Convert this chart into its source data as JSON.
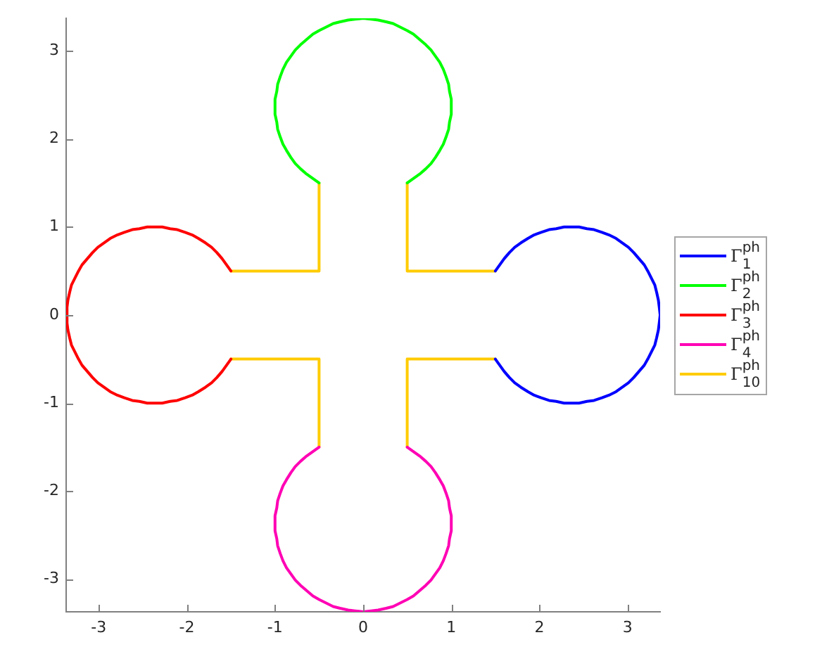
{
  "chart_data": {
    "type": "line",
    "xlim": [
      -3.37,
      3.37
    ],
    "ylim": [
      -3.37,
      3.37
    ],
    "xticks": [
      -3,
      -2,
      -1,
      0,
      1,
      2,
      3
    ],
    "yticks": [
      -3,
      -2,
      -1,
      0,
      1,
      2,
      3
    ],
    "grid": false,
    "legend": "right",
    "series": [
      {
        "name": "Γ$_{1}$$^{ph}$",
        "color": "#0000ff",
        "x": [
          1.5,
          1.55,
          1.6,
          1.66,
          1.72,
          1.79,
          1.87,
          1.94,
          2.02,
          2.11,
          2.19,
          2.28,
          2.37,
          2.45,
          2.54,
          2.62,
          2.71,
          2.79,
          2.87,
          2.94,
          3.01,
          3.07,
          3.13,
          3.19,
          3.23,
          3.27,
          3.31,
          3.33,
          3.35,
          3.36,
          3.37,
          3.36,
          3.35,
          3.33,
          3.31,
          3.27,
          3.23,
          3.19,
          3.13,
          3.07,
          3.01,
          2.94,
          2.87,
          2.79,
          2.71,
          2.62,
          2.54,
          2.45,
          2.37,
          2.28,
          2.19,
          2.11,
          2.02,
          1.94,
          1.87,
          1.79,
          1.72,
          1.66,
          1.6,
          1.55,
          1.5
        ],
        "values": [
          0.5,
          0.57,
          0.64,
          0.71,
          0.77,
          0.82,
          0.87,
          0.91,
          0.94,
          0.97,
          0.98,
          1,
          1,
          1,
          0.98,
          0.97,
          0.94,
          0.91,
          0.87,
          0.82,
          0.77,
          0.71,
          0.64,
          0.57,
          0.5,
          0.42,
          0.34,
          0.26,
          0.17,
          0.09,
          0,
          -0.09,
          -0.17,
          -0.26,
          -0.34,
          -0.42,
          -0.5,
          -0.57,
          -0.64,
          -0.71,
          -0.77,
          -0.82,
          -0.87,
          -0.91,
          -0.94,
          -0.97,
          -0.98,
          -1,
          -1,
          -1,
          -0.98,
          -0.97,
          -0.94,
          -0.91,
          -0.87,
          -0.82,
          -0.77,
          -0.71,
          -0.64,
          -0.57,
          -0.5
        ]
      },
      {
        "name": "Γ$_{2}$$^{ph}$",
        "color": "#00ff00",
        "x": [
          -0.5,
          -0.57,
          -0.64,
          -0.71,
          -0.77,
          -0.82,
          -0.87,
          -0.91,
          -0.94,
          -0.97,
          -0.98,
          -1,
          -1,
          -0.98,
          -0.97,
          -0.94,
          -0.91,
          -0.87,
          -0.82,
          -0.77,
          -0.71,
          -0.64,
          -0.57,
          -0.5,
          -0.42,
          -0.34,
          -0.26,
          -0.17,
          -0.09,
          0,
          0.09,
          0.17,
          0.26,
          0.34,
          0.42,
          0.5,
          0.57,
          0.64,
          0.71,
          0.77,
          0.82,
          0.87,
          0.91,
          0.94,
          0.97,
          0.98,
          1,
          1,
          0.98,
          0.97,
          0.94,
          0.91,
          0.87,
          0.82,
          0.77,
          0.71,
          0.64,
          0.57,
          0.5
        ],
        "values": [
          1.5,
          1.55,
          1.6,
          1.66,
          1.72,
          1.79,
          1.87,
          1.94,
          2.02,
          2.11,
          2.19,
          2.28,
          2.45,
          2.54,
          2.62,
          2.71,
          2.79,
          2.87,
          2.94,
          3.01,
          3.07,
          3.13,
          3.19,
          3.23,
          3.27,
          3.31,
          3.33,
          3.35,
          3.36,
          3.37,
          3.36,
          3.35,
          3.33,
          3.31,
          3.27,
          3.23,
          3.19,
          3.13,
          3.07,
          3.01,
          2.94,
          2.87,
          2.79,
          2.71,
          2.62,
          2.54,
          2.45,
          2.28,
          2.19,
          2.11,
          2.02,
          1.94,
          1.87,
          1.79,
          1.72,
          1.66,
          1.6,
          1.55,
          1.5
        ]
      },
      {
        "name": "Γ$_{3}$$^{ph}$",
        "color": "#ff0000",
        "x": [
          -1.5,
          -1.55,
          -1.6,
          -1.66,
          -1.72,
          -1.79,
          -1.87,
          -1.94,
          -2.02,
          -2.11,
          -2.19,
          -2.28,
          -2.37,
          -2.45,
          -2.54,
          -2.62,
          -2.71,
          -2.79,
          -2.87,
          -2.94,
          -3.01,
          -3.07,
          -3.13,
          -3.19,
          -3.23,
          -3.27,
          -3.31,
          -3.33,
          -3.35,
          -3.36,
          -3.36,
          -3.35,
          -3.33,
          -3.31,
          -3.27,
          -3.23,
          -3.19,
          -3.13,
          -3.07,
          -3.01,
          -2.94,
          -2.87,
          -2.79,
          -2.71,
          -2.62,
          -2.54,
          -2.45,
          -2.37,
          -2.28,
          -2.19,
          -2.11,
          -2.02,
          -1.94,
          -1.87,
          -1.79,
          -1.72,
          -1.66,
          -1.6,
          -1.55,
          -1.5
        ],
        "values": [
          -0.5,
          -0.57,
          -0.64,
          -0.71,
          -0.77,
          -0.82,
          -0.87,
          -0.91,
          -0.94,
          -0.97,
          -0.98,
          -1,
          -1,
          -1,
          -0.98,
          -0.97,
          -0.94,
          -0.91,
          -0.87,
          -0.82,
          -0.77,
          -0.71,
          -0.64,
          -0.57,
          -0.5,
          -0.42,
          -0.34,
          -0.26,
          -0.17,
          -0.09,
          0.09,
          0.17,
          0.26,
          0.34,
          0.42,
          0.5,
          0.57,
          0.64,
          0.71,
          0.77,
          0.82,
          0.87,
          0.91,
          0.94,
          0.97,
          0.98,
          1,
          1,
          1,
          0.98,
          0.97,
          0.94,
          0.91,
          0.87,
          0.82,
          0.77,
          0.71,
          0.64,
          0.57,
          0.5
        ]
      },
      {
        "name": "Γ$_{4}$$^{ph}$",
        "color": "#ff00b4",
        "x": [
          0.5,
          0.57,
          0.64,
          0.71,
          0.77,
          0.82,
          0.87,
          0.91,
          0.94,
          0.97,
          0.98,
          1,
          1,
          0.98,
          0.97,
          0.94,
          0.91,
          0.87,
          0.82,
          0.77,
          0.71,
          0.64,
          0.57,
          0.5,
          0.42,
          0.34,
          0.26,
          0.17,
          0.09,
          0,
          -0.09,
          -0.17,
          -0.26,
          -0.34,
          -0.42,
          -0.5,
          -0.57,
          -0.64,
          -0.71,
          -0.77,
          -0.82,
          -0.87,
          -0.91,
          -0.94,
          -0.97,
          -0.98,
          -1,
          -1,
          -0.98,
          -0.97,
          -0.94,
          -0.91,
          -0.87,
          -0.82,
          -0.77,
          -0.71,
          -0.64,
          -0.57,
          -0.5
        ],
        "values": [
          -1.5,
          -1.55,
          -1.6,
          -1.66,
          -1.72,
          -1.79,
          -1.87,
          -1.94,
          -2.02,
          -2.11,
          -2.19,
          -2.28,
          -2.45,
          -2.54,
          -2.62,
          -2.71,
          -2.79,
          -2.87,
          -2.94,
          -3.01,
          -3.07,
          -3.13,
          -3.19,
          -3.23,
          -3.27,
          -3.31,
          -3.33,
          -3.35,
          -3.36,
          -3.37,
          -3.36,
          -3.35,
          -3.33,
          -3.31,
          -3.27,
          -3.23,
          -3.19,
          -3.13,
          -3.07,
          -3.01,
          -2.94,
          -2.87,
          -2.79,
          -2.71,
          -2.62,
          -2.54,
          -2.45,
          -2.28,
          -2.19,
          -2.11,
          -2.02,
          -1.94,
          -1.87,
          -1.79,
          -1.72,
          -1.66,
          -1.6,
          -1.55,
          -1.5
        ]
      },
      {
        "name": "Γ$_{10}$$^{ph}$",
        "color": "#ffcc00",
        "x": [
          -1.5,
          -0.5,
          -0.5,
          null,
          0.5,
          0.5,
          1.5,
          null,
          1.5,
          0.5,
          0.5,
          null,
          -0.5,
          -0.5,
          -1.5
        ],
        "values": [
          0.5,
          0.5,
          1.5,
          null,
          1.5,
          0.5,
          0.5,
          null,
          -0.5,
          -0.5,
          -1.5,
          null,
          -1.5,
          -0.5,
          -0.5
        ]
      }
    ]
  }
}
